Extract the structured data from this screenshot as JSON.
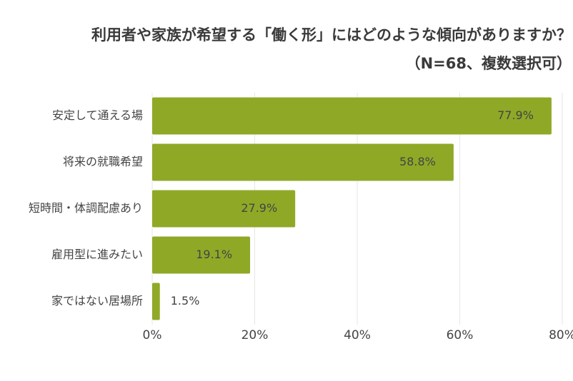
{
  "chart_data": {
    "type": "hbar",
    "title": "利用者や家族が希望する「働く形」にはどのような傾向がありますか？",
    "subtitle": "（N=68、複数選択可）",
    "categories": [
      "安定して通える場",
      "将来の就職希望",
      "短時間・体調配慮あり",
      "雇用型に進みたい",
      "家ではない居場所"
    ],
    "values": [
      77.9,
      58.8,
      27.9,
      19.1,
      1.5
    ],
    "value_labels": [
      "77.9%",
      "58.8%",
      "27.9%",
      "19.1%",
      "1.5%"
    ],
    "color": "#8fa927",
    "xlim": [
      0,
      80
    ],
    "xticks": [
      {
        "value": 0,
        "label": "0%"
      },
      {
        "value": 20,
        "label": "20%"
      },
      {
        "value": 40,
        "label": "40%"
      },
      {
        "value": 60,
        "label": "60%"
      },
      {
        "value": 80,
        "label": "80%"
      }
    ],
    "grid": true
  }
}
